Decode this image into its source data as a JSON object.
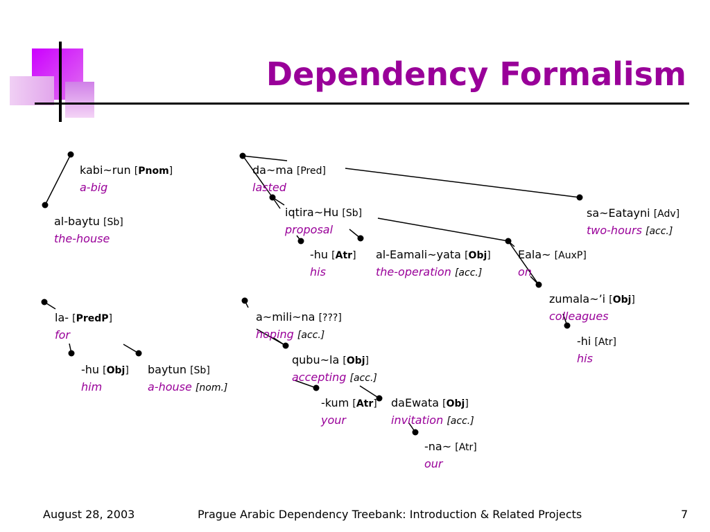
{
  "slide": {
    "title": "Dependency Formalism",
    "footer_date": "August 28, 2003",
    "footer_title": "Prague Arabic Dependency Treebank: Introduction & Related Projects",
    "page_number": "7"
  },
  "colors": {
    "accent": "#990099",
    "logo_magenta": "#cc00ff",
    "logo_pink": "#e899f0"
  },
  "nodes": [
    {
      "id": "kabirun",
      "word": "kabi~run",
      "tag": "Pnom",
      "bold": true,
      "gloss": "a-big",
      "extra": ""
    },
    {
      "id": "albaytu",
      "word": "al-baytu",
      "tag": "Sb",
      "bold": false,
      "gloss": "the-house",
      "extra": ""
    },
    {
      "id": "dama",
      "word": "da~ma",
      "tag": "Pred",
      "bold": false,
      "gloss": "lasted",
      "extra": ""
    },
    {
      "id": "iqtirahu",
      "word": "iqtira~Hu",
      "tag": "Sb",
      "bold": false,
      "gloss": "proposal",
      "extra": ""
    },
    {
      "id": "hu1",
      "word": "-hu",
      "tag": "Atr",
      "bold": true,
      "gloss": "his",
      "extra": ""
    },
    {
      "id": "aleamaliyata",
      "word": "al-Eamali~yata",
      "tag": "Obj",
      "bold": true,
      "gloss": "the-operation",
      "extra": "[acc.]"
    },
    {
      "id": "eala",
      "word": "Eala~",
      "tag": "AuxP",
      "bold": false,
      "gloss": "on",
      "extra": ""
    },
    {
      "id": "saeatayni",
      "word": "sa~Eatayni",
      "tag": "Adv",
      "bold": false,
      "gloss": "two-hours",
      "extra": "[acc.]"
    },
    {
      "id": "zumalai",
      "word": "zumala~’i",
      "tag": "Obj",
      "bold": true,
      "gloss": "colleagues",
      "extra": ""
    },
    {
      "id": "hi",
      "word": "-hi",
      "tag": "Atr",
      "bold": false,
      "gloss": "his",
      "extra": ""
    },
    {
      "id": "la",
      "word": "la-",
      "tag": "PredP",
      "bold": true,
      "gloss": "for",
      "extra": ""
    },
    {
      "id": "hu2",
      "word": "-hu",
      "tag": "Obj",
      "bold": true,
      "gloss": "him",
      "extra": ""
    },
    {
      "id": "baytun",
      "word": "baytun",
      "tag": "Sb",
      "bold": false,
      "gloss": "a-house",
      "extra": "[nom.]"
    },
    {
      "id": "aminina",
      "word": "a~mili~na",
      "tag": "???",
      "bold": false,
      "gloss": "hoping",
      "extra": "[acc.]"
    },
    {
      "id": "qubula",
      "word": "qubu~la",
      "tag": "Obj",
      "bold": true,
      "gloss": "accepting",
      "extra": "[acc.]"
    },
    {
      "id": "kum",
      "word": "-kum",
      "tag": "Atr",
      "bold": true,
      "gloss": "your",
      "extra": ""
    },
    {
      "id": "daewata",
      "word": "daEwata",
      "tag": "Obj",
      "bold": true,
      "gloss": "invitation",
      "extra": "[acc.]"
    },
    {
      "id": "na",
      "word": "-na~",
      "tag": "Atr",
      "bold": false,
      "gloss": "our",
      "extra": ""
    }
  ]
}
